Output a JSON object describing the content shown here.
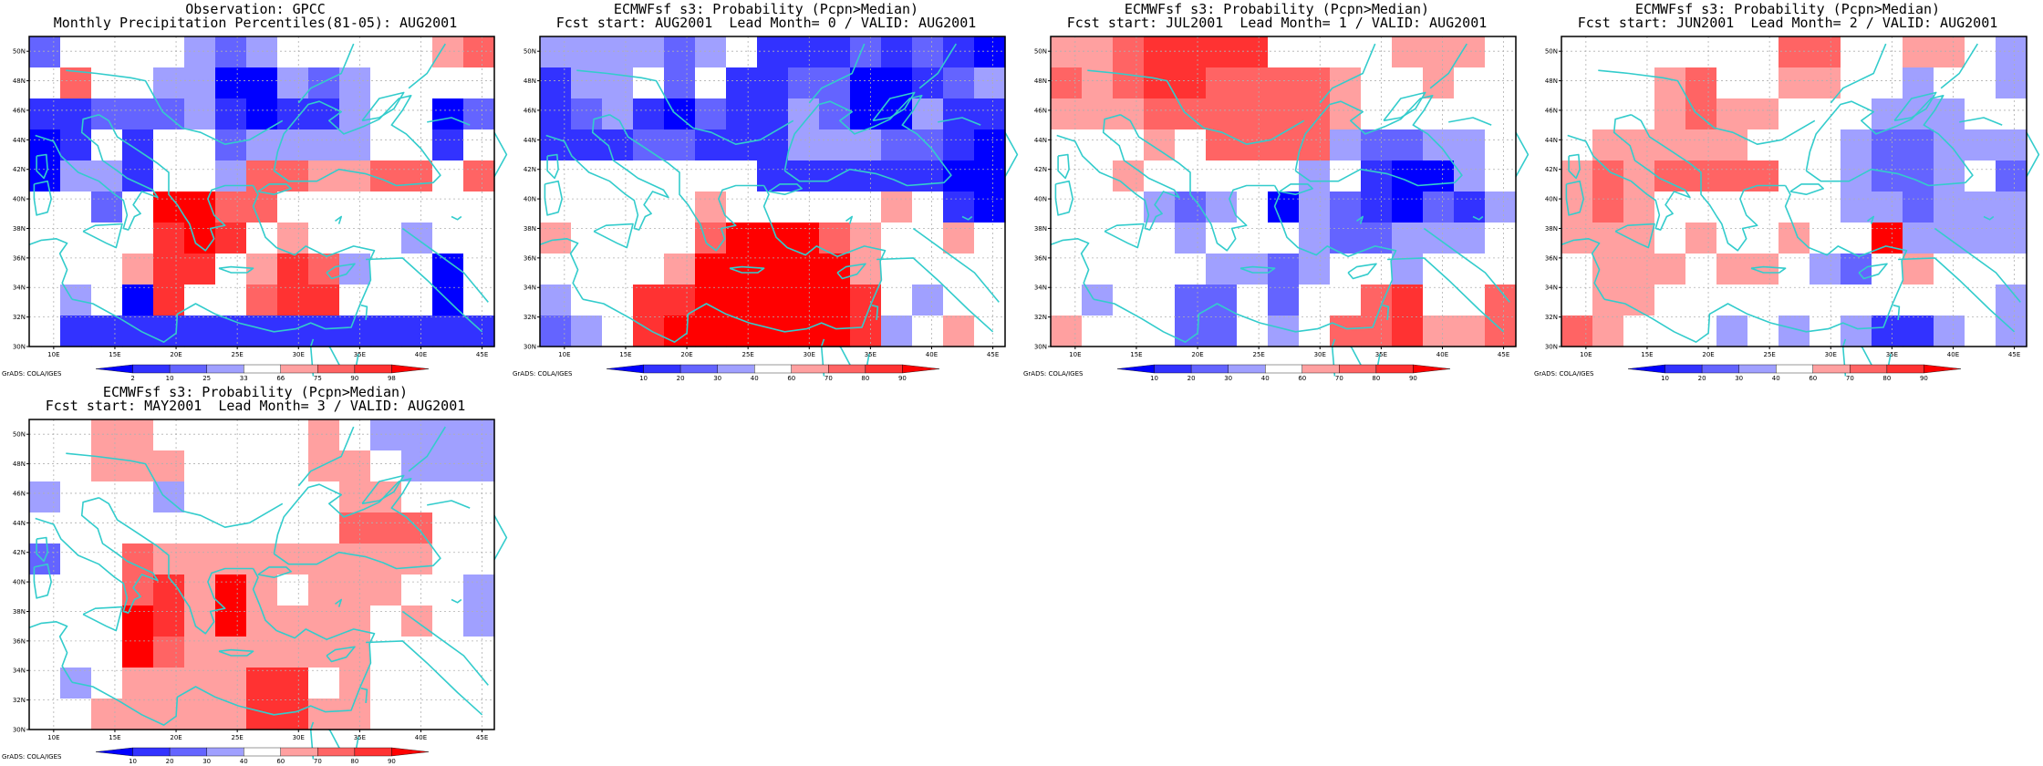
{
  "colors": {
    "coast": "#33cccc",
    "grid": "#b0b0b0",
    "levels": [
      "#0000ff",
      "#3232ff",
      "#6464ff",
      "#a0a0ff",
      "#ffffff",
      "#ffa0a0",
      "#ff6464",
      "#ff3232",
      "#ff0000"
    ]
  },
  "panels": [
    {
      "title1": "Observation: GPCC",
      "title2": "Monthly Precipitation Percentiles(81-05): AUG2001",
      "cbar_labels": [
        "2",
        "10",
        "25",
        "33",
        "66",
        "75",
        "90",
        "98"
      ],
      "credit": "GrADS: COLA/IGES",
      "grid": [
        [
          2,
          4,
          4,
          4,
          4,
          3,
          2,
          3,
          4,
          4,
          4,
          4,
          4,
          5,
          6
        ],
        [
          4,
          6,
          4,
          4,
          3,
          3,
          0,
          0,
          3,
          2,
          3,
          4,
          4,
          4,
          4
        ],
        [
          1,
          1,
          2,
          2,
          2,
          3,
          1,
          0,
          1,
          1,
          3,
          4,
          4,
          0,
          2
        ],
        [
          0,
          1,
          4,
          1,
          4,
          4,
          2,
          3,
          3,
          3,
          3,
          4,
          4,
          1,
          4
        ],
        [
          0,
          3,
          3,
          1,
          4,
          4,
          3,
          6,
          6,
          5,
          5,
          6,
          6,
          4,
          6
        ],
        [
          4,
          4,
          2,
          4,
          8,
          8,
          6,
          6,
          4,
          4,
          4,
          4,
          4,
          4,
          4
        ],
        [
          4,
          4,
          4,
          4,
          7,
          8,
          7,
          4,
          5,
          4,
          4,
          4,
          3,
          4,
          4
        ],
        [
          4,
          4,
          4,
          5,
          7,
          7,
          4,
          5,
          7,
          6,
          3,
          4,
          4,
          0,
          4
        ],
        [
          4,
          3,
          4,
          0,
          7,
          4,
          4,
          6,
          7,
          7,
          4,
          4,
          4,
          0,
          4
        ],
        [
          4,
          1,
          1,
          1,
          1,
          1,
          1,
          1,
          1,
          1,
          1,
          1,
          1,
          1,
          1
        ]
      ],
      "xticks": [
        "10E",
        "15E",
        "20E",
        "25E",
        "30E",
        "35E",
        "40E",
        "45E"
      ],
      "yticks": [
        "30N",
        "32N",
        "34N",
        "36N",
        "38N",
        "40N",
        "42N",
        "44N",
        "46N",
        "48N",
        "50N"
      ]
    },
    {
      "title1": "ECMWFsf s3: Probability (Pcpn>Median)",
      "title2": "Fcst start: AUG2001  Lead Month= 0 / VALID: AUG2001",
      "cbar_labels": [
        "10",
        "20",
        "30",
        "40",
        "60",
        "70",
        "80",
        "90"
      ],
      "credit": "GrADS: COLA/IGES",
      "grid": [
        [
          3,
          3,
          3,
          3,
          2,
          3,
          4,
          1,
          1,
          1,
          2,
          1,
          2,
          1,
          0
        ],
        [
          1,
          3,
          3,
          4,
          2,
          4,
          1,
          1,
          2,
          2,
          0,
          0,
          1,
          2,
          3
        ],
        [
          1,
          2,
          3,
          1,
          0,
          2,
          1,
          1,
          3,
          2,
          0,
          0,
          3,
          1,
          1
        ],
        [
          1,
          1,
          1,
          2,
          2,
          1,
          1,
          1,
          3,
          3,
          3,
          2,
          2,
          1,
          0
        ],
        [
          4,
          4,
          4,
          4,
          4,
          4,
          4,
          1,
          1,
          1,
          1,
          1,
          1,
          0,
          0
        ],
        [
          4,
          4,
          4,
          4,
          4,
          5,
          4,
          4,
          4,
          4,
          4,
          5,
          4,
          1,
          0
        ],
        [
          5,
          4,
          4,
          4,
          4,
          6,
          8,
          8,
          8,
          6,
          5,
          4,
          4,
          5,
          4
        ],
        [
          4,
          4,
          4,
          4,
          5,
          8,
          8,
          8,
          8,
          8,
          5,
          4,
          4,
          4,
          4
        ],
        [
          3,
          4,
          4,
          7,
          7,
          8,
          8,
          8,
          8,
          8,
          7,
          4,
          3,
          4,
          4
        ],
        [
          2,
          3,
          4,
          7,
          8,
          8,
          8,
          8,
          8,
          8,
          7,
          3,
          4,
          5,
          4
        ]
      ],
      "xticks": [
        "10E",
        "15E",
        "20E",
        "25E",
        "30E",
        "35E",
        "40E",
        "45E"
      ],
      "yticks": [
        "30N",
        "32N",
        "34N",
        "36N",
        "38N",
        "40N",
        "42N",
        "44N",
        "46N",
        "48N",
        "50N"
      ]
    },
    {
      "title1": "ECMWFsf s3: Probability (Pcpn>Median)",
      "title2": "Fcst start: JUL2001  Lead Month= 1 / VALID: AUG2001",
      "cbar_labels": [
        "10",
        "20",
        "30",
        "40",
        "60",
        "70",
        "80",
        "90"
      ],
      "credit": "GrADS: COLA/IGES",
      "grid": [
        [
          5,
          5,
          6,
          7,
          7,
          7,
          7,
          4,
          4,
          4,
          4,
          5,
          5,
          5,
          4
        ],
        [
          6,
          5,
          6,
          7,
          7,
          6,
          6,
          6,
          6,
          5,
          4,
          4,
          5,
          4,
          4
        ],
        [
          5,
          5,
          5,
          6,
          6,
          6,
          6,
          6,
          6,
          5,
          4,
          4,
          4,
          4,
          4
        ],
        [
          4,
          4,
          4,
          5,
          4,
          6,
          6,
          6,
          6,
          3,
          2,
          2,
          3,
          3,
          4
        ],
        [
          4,
          4,
          5,
          4,
          4,
          4,
          4,
          4,
          3,
          4,
          1,
          0,
          0,
          3,
          4
        ],
        [
          4,
          4,
          4,
          3,
          2,
          3,
          4,
          0,
          3,
          2,
          1,
          0,
          2,
          1,
          3
        ],
        [
          4,
          4,
          4,
          4,
          3,
          4,
          4,
          4,
          3,
          2,
          2,
          3,
          3,
          3,
          4
        ],
        [
          4,
          4,
          4,
          4,
          4,
          3,
          3,
          2,
          3,
          4,
          4,
          3,
          4,
          4,
          4
        ],
        [
          4,
          3,
          4,
          4,
          2,
          2,
          4,
          2,
          4,
          4,
          6,
          7,
          4,
          4,
          6
        ],
        [
          5,
          4,
          4,
          4,
          2,
          2,
          4,
          3,
          4,
          6,
          6,
          7,
          5,
          5,
          6
        ]
      ],
      "xticks": [
        "10E",
        "15E",
        "20E",
        "25E",
        "30E",
        "35E",
        "40E",
        "45E"
      ],
      "yticks": [
        "30N",
        "32N",
        "34N",
        "36N",
        "38N",
        "40N",
        "42N",
        "44N",
        "46N",
        "48N",
        "50N"
      ]
    },
    {
      "title1": "ECMWFsf s3: Probability (Pcpn>Median)",
      "title2": "Fcst start: JUN2001  Lead Month= 2 / VALID: AUG2001",
      "cbar_labels": [
        "10",
        "20",
        "30",
        "40",
        "60",
        "70",
        "80",
        "90"
      ],
      "credit": "GrADS: COLA/IGES",
      "grid": [
        [
          4,
          4,
          4,
          4,
          4,
          4,
          4,
          6,
          6,
          4,
          4,
          5,
          5,
          4,
          3
        ],
        [
          4,
          4,
          4,
          5,
          6,
          4,
          4,
          5,
          5,
          4,
          4,
          3,
          4,
          4,
          3
        ],
        [
          4,
          4,
          4,
          5,
          6,
          5,
          5,
          4,
          4,
          4,
          3,
          3,
          3,
          4,
          4
        ],
        [
          4,
          5,
          5,
          5,
          5,
          5,
          4,
          4,
          4,
          3,
          2,
          2,
          3,
          3,
          3
        ],
        [
          5,
          6,
          5,
          6,
          6,
          6,
          6,
          4,
          4,
          3,
          2,
          2,
          3,
          4,
          2
        ],
        [
          5,
          6,
          5,
          4,
          4,
          4,
          4,
          4,
          4,
          3,
          3,
          2,
          3,
          3,
          3
        ],
        [
          5,
          5,
          5,
          4,
          5,
          4,
          4,
          5,
          4,
          4,
          8,
          3,
          3,
          3,
          3
        ],
        [
          4,
          5,
          5,
          5,
          4,
          5,
          5,
          4,
          3,
          2,
          4,
          5,
          4,
          4,
          4
        ],
        [
          4,
          5,
          5,
          4,
          4,
          4,
          4,
          4,
          4,
          4,
          4,
          4,
          4,
          4,
          3
        ],
        [
          6,
          5,
          4,
          4,
          4,
          3,
          4,
          3,
          4,
          3,
          1,
          1,
          3,
          4,
          3
        ]
      ],
      "xticks": [
        "10E",
        "15E",
        "20E",
        "25E",
        "30E",
        "35E",
        "40E",
        "45E"
      ],
      "yticks": [
        "30N",
        "32N",
        "34N",
        "36N",
        "38N",
        "40N",
        "42N",
        "44N",
        "46N",
        "48N",
        "50N"
      ]
    },
    {
      "title1": "ECMWFsf s3: Probability (Pcpn>Median)",
      "title2": "Fcst start: MAY2001  Lead Month= 3 / VALID: AUG2001",
      "cbar_labels": [
        "10",
        "20",
        "30",
        "40",
        "60",
        "70",
        "80",
        "90"
      ],
      "credit": "GrADS: COLA/IGES",
      "grid": [
        [
          4,
          4,
          5,
          5,
          4,
          4,
          4,
          4,
          4,
          5,
          4,
          3,
          3,
          3,
          3
        ],
        [
          4,
          4,
          5,
          5,
          5,
          4,
          4,
          4,
          4,
          5,
          5,
          4,
          3,
          3,
          3
        ],
        [
          3,
          4,
          4,
          4,
          3,
          4,
          4,
          4,
          4,
          4,
          5,
          5,
          4,
          4,
          4
        ],
        [
          4,
          4,
          4,
          4,
          4,
          4,
          4,
          4,
          4,
          4,
          6,
          6,
          6,
          4,
          4
        ],
        [
          2,
          4,
          4,
          6,
          5,
          5,
          5,
          5,
          5,
          5,
          5,
          5,
          5,
          4,
          4
        ],
        [
          4,
          4,
          4,
          6,
          7,
          5,
          8,
          5,
          4,
          5,
          5,
          5,
          4,
          4,
          3
        ],
        [
          4,
          4,
          4,
          8,
          7,
          5,
          8,
          5,
          5,
          5,
          5,
          4,
          5,
          4,
          3
        ],
        [
          4,
          4,
          4,
          8,
          6,
          5,
          5,
          5,
          5,
          5,
          5,
          4,
          4,
          4,
          4
        ],
        [
          4,
          3,
          4,
          5,
          5,
          5,
          5,
          7,
          7,
          4,
          5,
          4,
          4,
          4,
          4
        ],
        [
          4,
          4,
          5,
          5,
          5,
          5,
          5,
          7,
          7,
          5,
          5,
          4,
          4,
          4,
          4
        ]
      ],
      "xticks": [
        "10E",
        "15E",
        "20E",
        "25E",
        "30E",
        "35E",
        "40E",
        "45E"
      ],
      "yticks": [
        "30N",
        "32N",
        "34N",
        "36N",
        "38N",
        "40N",
        "42N",
        "44N",
        "46N",
        "48N",
        "50N"
      ]
    }
  ]
}
